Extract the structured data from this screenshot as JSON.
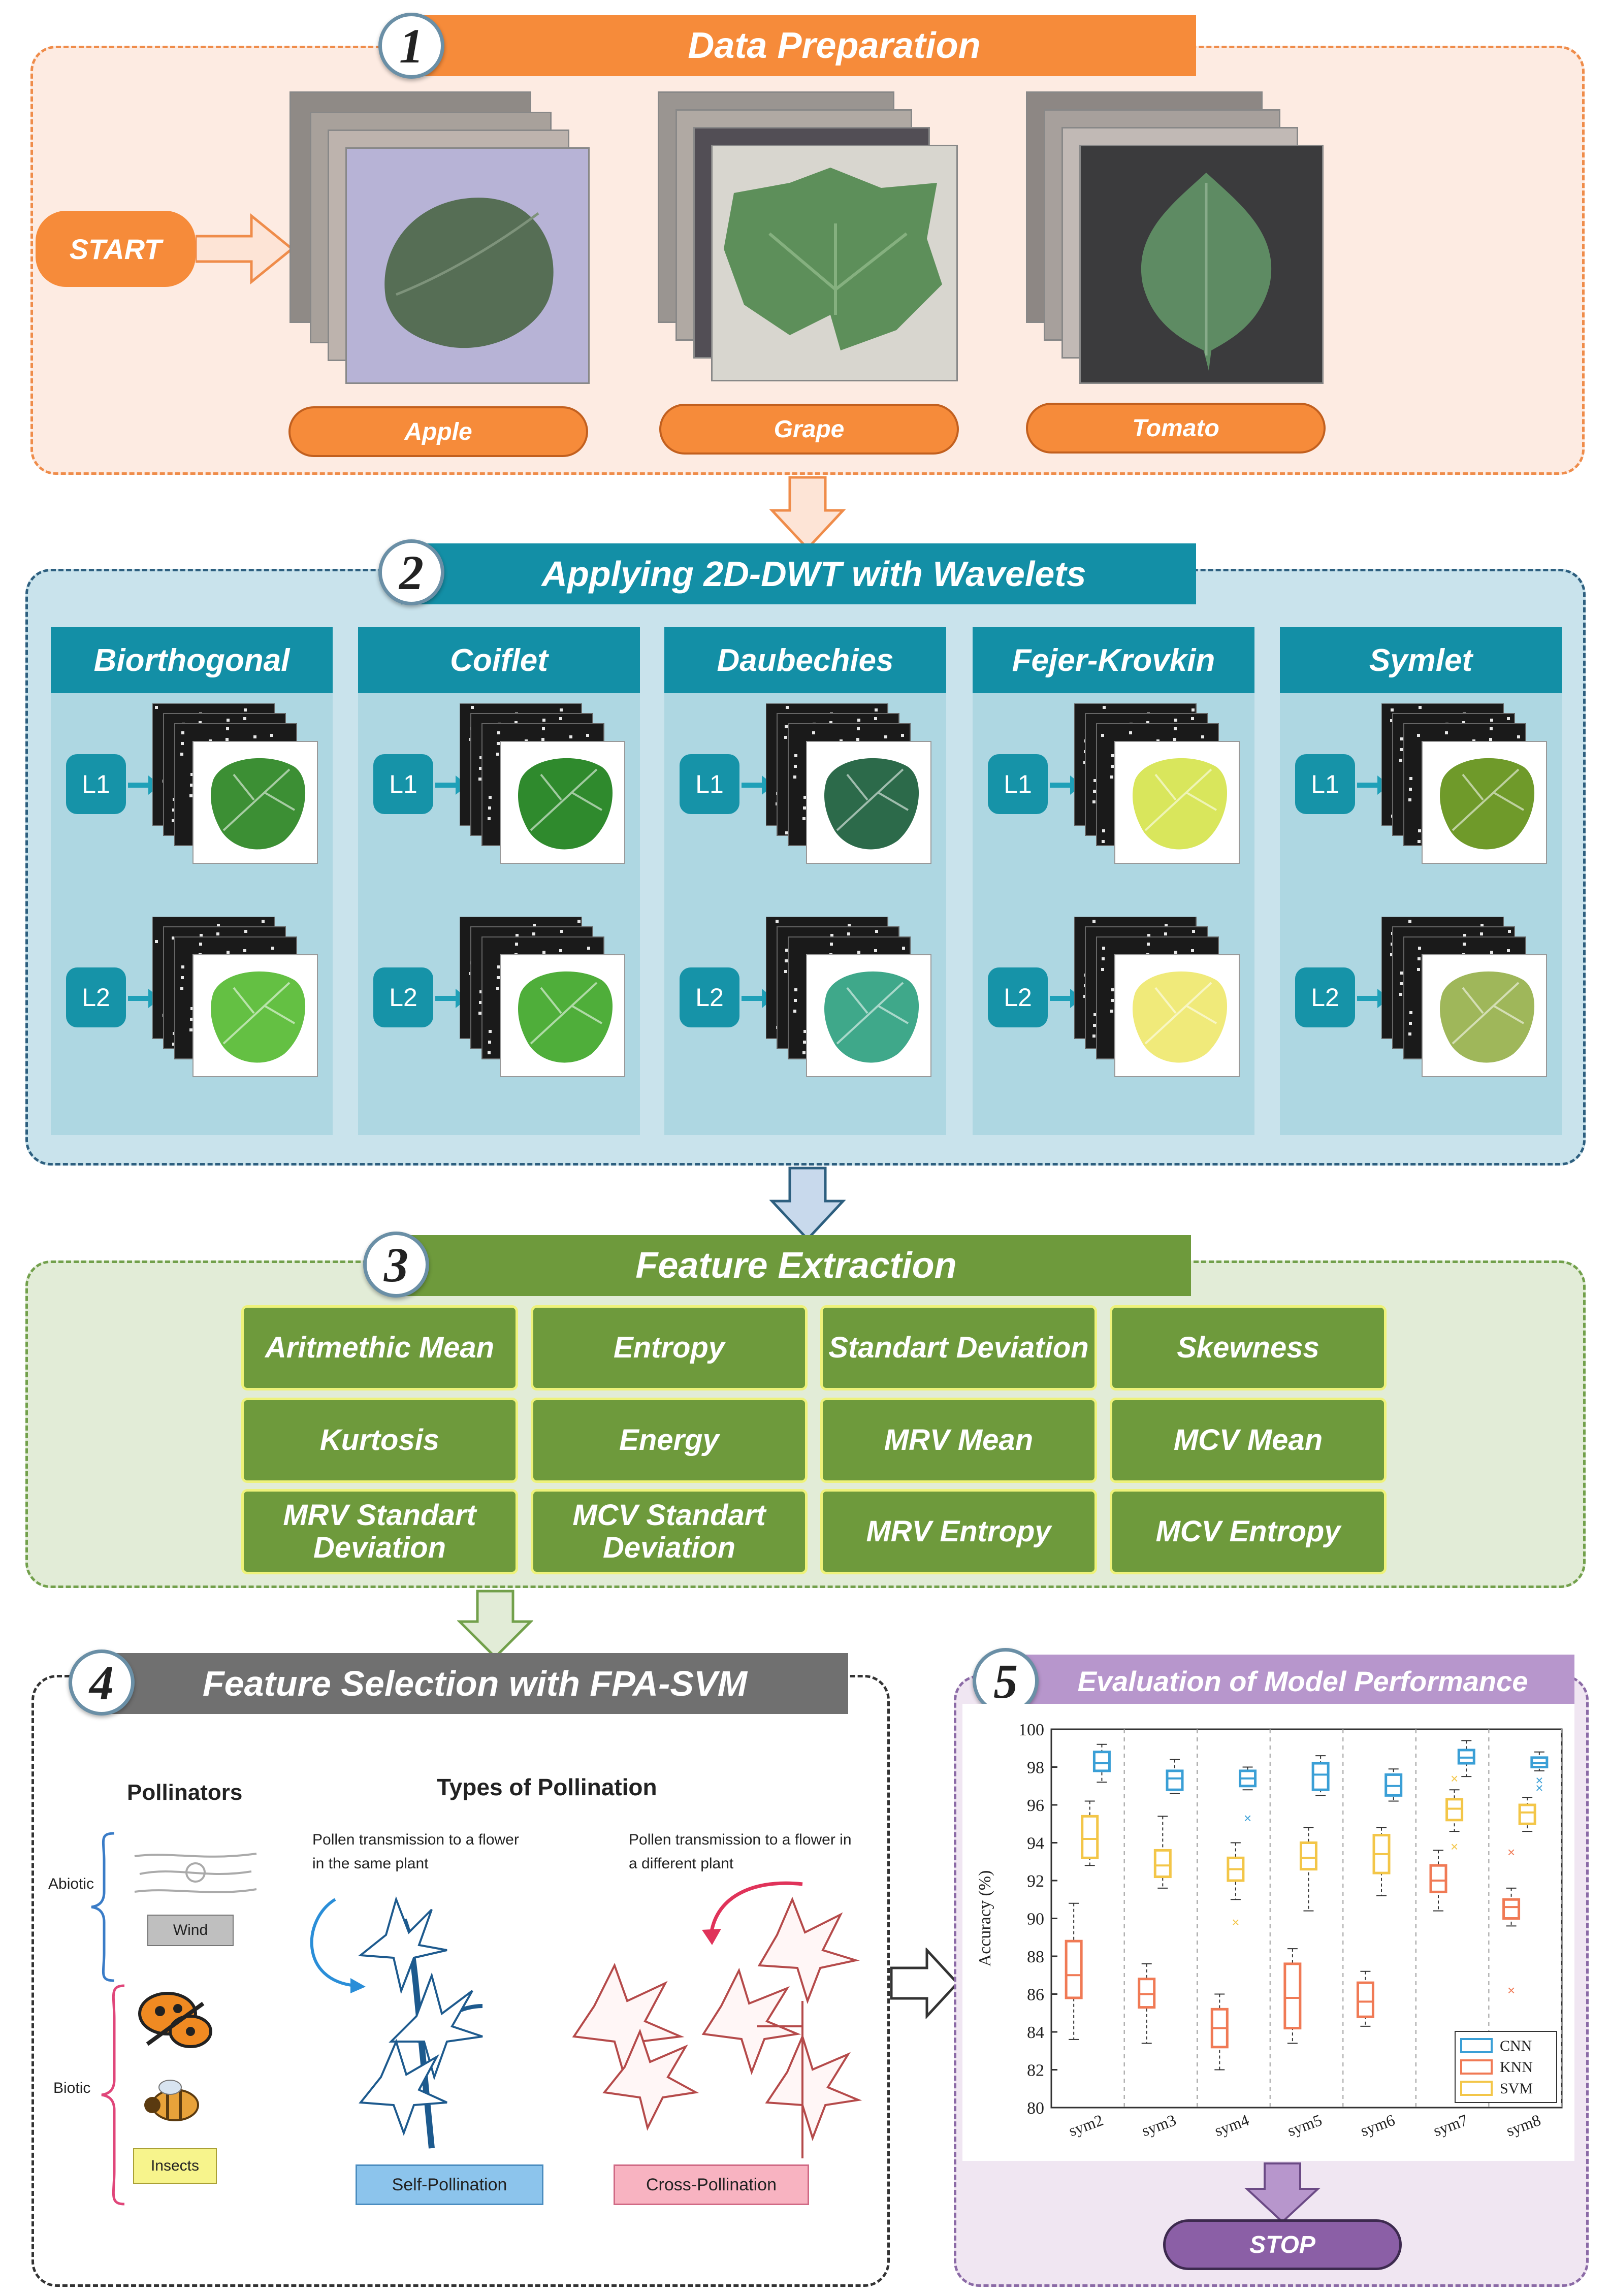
{
  "colors": {
    "sec1_border": "#ef8c4a",
    "sec1_fill": "#fdebe2",
    "orange": "#f68b3a",
    "sec2_border": "#2d5f7f",
    "sec2_fill": "#c9e3ec",
    "teal": "#138fa6",
    "sec3_border": "#72a04b",
    "sec3_fill": "#e2ecd7",
    "green": "#6e9a3c",
    "sec4_banner": "#707070",
    "sec5_banner": "#b796cc",
    "stop": "#8b5fa6"
  },
  "section1": {
    "number": "1",
    "title": "Data Preparation",
    "start_label": "START",
    "datasets": [
      "Apple",
      "Grape",
      "Tomato"
    ]
  },
  "section2": {
    "number": "2",
    "title": "Applying 2D-DWT with Wavelets",
    "wavelets": [
      "Biorthogonal",
      "Coiflet",
      "Daubechies",
      "Fejer-Krovkin",
      "Symlet"
    ],
    "levels": [
      "L1",
      "L2"
    ]
  },
  "section3": {
    "number": "3",
    "title": "Feature Extraction",
    "features": [
      "Aritmethic Mean",
      "Entropy",
      "Standart Deviation",
      "Skewness",
      "Kurtosis",
      "Energy",
      "MRV Mean",
      "MCV Mean",
      "MRV Standart Deviation",
      "MCV Standart Deviation",
      "MRV Entropy",
      "MCV Entropy"
    ]
  },
  "section4": {
    "number": "4",
    "title": "Feature Selection with FPA-SVM",
    "pollinators_title": "Pollinators",
    "types_title": "Types of Pollination",
    "abiotic": "Abiotic",
    "biotic": "Biotic",
    "wind": "Wind",
    "insects": "Insects",
    "self_desc": "Pollen transmission to a flower in the same plant",
    "cross_desc": "Pollen transmission to a flower in a different plant",
    "self_label": "Self-Pollination",
    "cross_label": "Cross-Pollination"
  },
  "section5": {
    "number": "5",
    "title": "Evaluation of Model Performance",
    "stop_label": "STOP"
  },
  "chart_data": {
    "type": "box",
    "categories": [
      "sym2",
      "sym3",
      "sym4",
      "sym5",
      "sym6",
      "sym7",
      "sym8"
    ],
    "ylabel": "Accuracy (%)",
    "ylim": [
      80,
      100
    ],
    "yticks": [
      80,
      82,
      84,
      86,
      88,
      90,
      92,
      94,
      96,
      98,
      100
    ],
    "legend_position": "bottom-right",
    "series": [
      {
        "name": "CNN",
        "color": "#3a9fd6",
        "boxes": [
          {
            "min": 97.2,
            "q1": 97.8,
            "med": 98.2,
            "q3": 98.8,
            "max": 99.2,
            "outliers": []
          },
          {
            "min": 96.6,
            "q1": 96.8,
            "med": 97.4,
            "q3": 97.8,
            "max": 98.4,
            "outliers": []
          },
          {
            "min": 96.8,
            "q1": 97.0,
            "med": 97.4,
            "q3": 97.8,
            "max": 98.0,
            "outliers": [
              95.3
            ]
          },
          {
            "min": 96.5,
            "q1": 96.8,
            "med": 97.6,
            "q3": 98.2,
            "max": 98.6,
            "outliers": []
          },
          {
            "min": 96.2,
            "q1": 96.5,
            "med": 97.0,
            "q3": 97.6,
            "max": 97.9,
            "outliers": []
          },
          {
            "min": 97.5,
            "q1": 98.2,
            "med": 98.5,
            "q3": 98.9,
            "max": 99.4,
            "outliers": []
          },
          {
            "min": 97.8,
            "q1": 98.0,
            "med": 98.2,
            "q3": 98.5,
            "max": 98.8,
            "outliers": [
              97.3,
              96.9
            ]
          }
        ]
      },
      {
        "name": "KNN",
        "color": "#f07a55",
        "boxes": [
          {
            "min": 83.6,
            "q1": 85.8,
            "med": 87.0,
            "q3": 88.8,
            "max": 90.8,
            "outliers": []
          },
          {
            "min": 83.4,
            "q1": 85.3,
            "med": 86.0,
            "q3": 86.8,
            "max": 87.6,
            "outliers": []
          },
          {
            "min": 82.0,
            "q1": 83.2,
            "med": 84.2,
            "q3": 85.2,
            "max": 86.0,
            "outliers": []
          },
          {
            "min": 83.4,
            "q1": 84.2,
            "med": 85.8,
            "q3": 87.6,
            "max": 88.4,
            "outliers": []
          },
          {
            "min": 84.3,
            "q1": 84.8,
            "med": 85.6,
            "q3": 86.6,
            "max": 87.2,
            "outliers": []
          },
          {
            "min": 90.4,
            "q1": 91.4,
            "med": 92.0,
            "q3": 92.8,
            "max": 93.6,
            "outliers": []
          },
          {
            "min": 89.6,
            "q1": 90.0,
            "med": 90.6,
            "q3": 91.0,
            "max": 91.6,
            "outliers": [
              93.5,
              86.2
            ]
          }
        ]
      },
      {
        "name": "SVM",
        "color": "#f3c648",
        "boxes": [
          {
            "min": 92.8,
            "q1": 93.2,
            "med": 94.2,
            "q3": 95.4,
            "max": 96.2,
            "outliers": []
          },
          {
            "min": 91.6,
            "q1": 92.2,
            "med": 92.8,
            "q3": 93.6,
            "max": 95.4,
            "outliers": []
          },
          {
            "min": 91.0,
            "q1": 92.0,
            "med": 92.6,
            "q3": 93.2,
            "max": 94.0,
            "outliers": [
              89.8
            ]
          },
          {
            "min": 90.4,
            "q1": 92.6,
            "med": 93.2,
            "q3": 94.0,
            "max": 94.8,
            "outliers": []
          },
          {
            "min": 91.2,
            "q1": 92.4,
            "med": 93.4,
            "q3": 94.4,
            "max": 94.8,
            "outliers": []
          },
          {
            "min": 94.6,
            "q1": 95.2,
            "med": 95.8,
            "q3": 96.3,
            "max": 96.8,
            "outliers": [
              97.4,
              93.8
            ]
          },
          {
            "min": 94.6,
            "q1": 95.0,
            "med": 95.6,
            "q3": 96.0,
            "max": 96.4,
            "outliers": []
          }
        ]
      }
    ]
  }
}
